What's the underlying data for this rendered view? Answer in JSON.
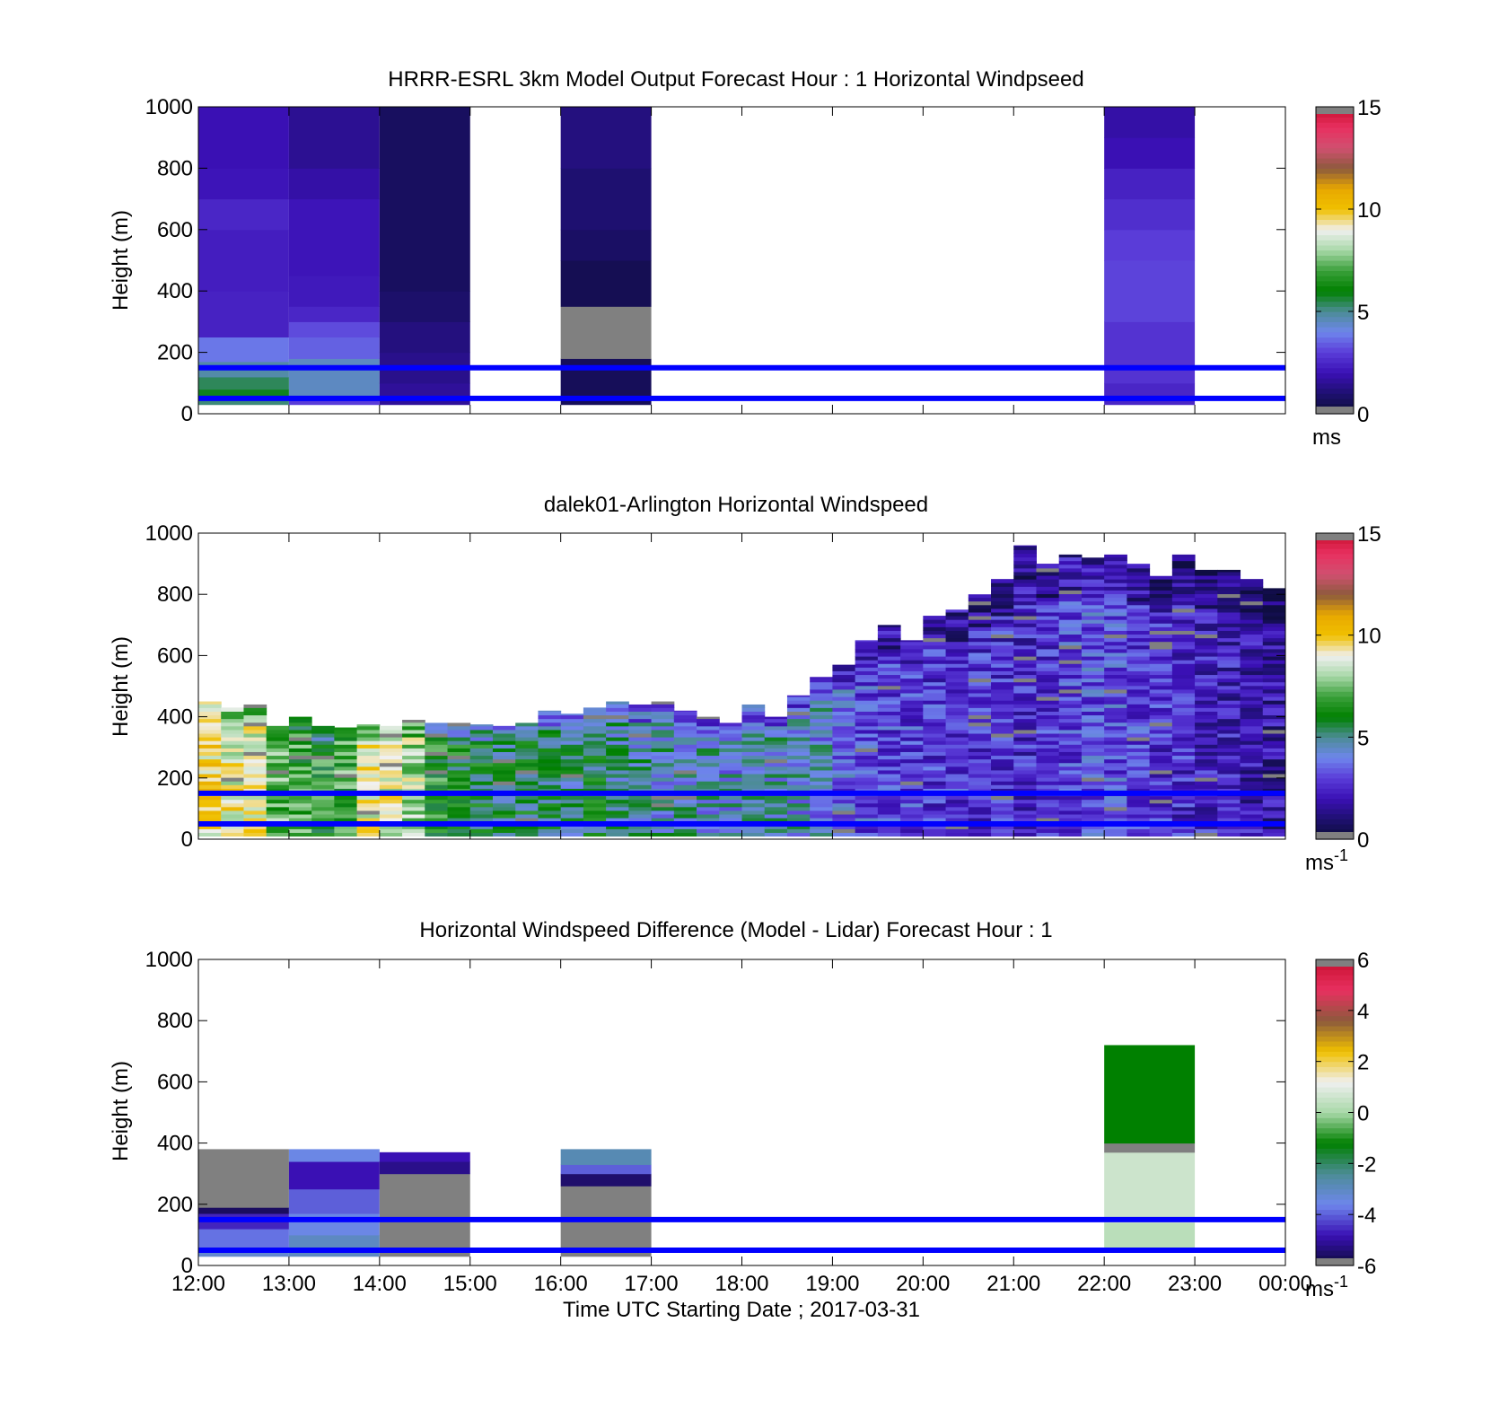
{
  "figure": {
    "x_axis_label": "Time UTC  Starting Date ; 2017-03-31",
    "x_tick_labels": [
      "12:00",
      "13:00",
      "14:00",
      "15:00",
      "16:00",
      "17:00",
      "18:00",
      "19:00",
      "20:00",
      "21:00",
      "22:00",
      "23:00",
      "00:00"
    ]
  },
  "palettes": {
    "speed": [
      "#0b0c36",
      "#1e1070",
      "#3a10b4",
      "#5a3cd8",
      "#6e86ec",
      "#4c8c96",
      "#008000",
      "#3aa03a",
      "#a8d8a8",
      "#f0f0f0",
      "#f0c000",
      "#e8a800",
      "#8c5a3c",
      "#d05070",
      "#e83060",
      "#c8102e"
    ],
    "diff": [
      "#0b0c36",
      "#3a10b4",
      "#6e86ec",
      "#4c8c96",
      "#008000",
      "#a8d8a8",
      "#f0f0f0",
      "#f0c000",
      "#8c5a3c",
      "#e83060",
      "#c8102e"
    ]
  },
  "chart_data": [
    {
      "type": "heatmap",
      "title": "HRRR-ESRL 3km Model Output   Forecast Hour : 1 Horizontal Windpseed",
      "ylabel": "Height (m)",
      "xlim": [
        "12:00",
        "00:00"
      ],
      "ylim": [
        0,
        1000
      ],
      "y_ticks": [
        "0",
        "200",
        "400",
        "600",
        "800",
        "1000"
      ],
      "colorbar": {
        "min": 0,
        "max": 15,
        "ticks": [
          "0",
          "5",
          "10",
          "15"
        ],
        "unit": "ms",
        "palette": "speed"
      },
      "reference_heights_m": [
        50,
        150
      ],
      "columns": [
        {
          "start": "12:00",
          "end": "13:00",
          "layers": [
            [
              30,
              50,
              5.2
            ],
            [
              50,
              80,
              5.8
            ],
            [
              80,
              120,
              5.4
            ],
            [
              120,
              170,
              4.8
            ],
            [
              170,
              250,
              3.8
            ],
            [
              250,
              400,
              2.4
            ],
            [
              400,
              600,
              2.3
            ],
            [
              600,
              700,
              2.5
            ],
            [
              700,
              800,
              2.1
            ],
            [
              800,
              1000,
              2.0
            ]
          ]
        },
        {
          "start": "13:00",
          "end": "14:00",
          "layers": [
            [
              30,
              60,
              3.0
            ],
            [
              60,
              180,
              4.5
            ],
            [
              180,
              250,
              3.5
            ],
            [
              250,
              300,
              3.2
            ],
            [
              300,
              350,
              2.5
            ],
            [
              350,
              450,
              2.2
            ],
            [
              450,
              700,
              2.1
            ],
            [
              700,
              800,
              1.8
            ],
            [
              800,
              1000,
              1.5
            ]
          ]
        },
        {
          "start": "14:00",
          "end": "15:00",
          "layers": [
            [
              30,
              100,
              1.6
            ],
            [
              100,
              200,
              1.4
            ],
            [
              200,
              300,
              1.2
            ],
            [
              300,
              400,
              0.9
            ],
            [
              400,
              1000,
              0.7
            ]
          ]
        },
        {
          "start": "16:00",
          "end": "17:00",
          "layers": [
            [
              30,
              180,
              0.6
            ],
            [
              180,
              350,
              "nan"
            ],
            [
              350,
              500,
              0.5
            ],
            [
              500,
              600,
              0.8
            ],
            [
              600,
              800,
              1.0
            ],
            [
              800,
              1000,
              1.2
            ]
          ]
        },
        {
          "start": "22:00",
          "end": "23:00",
          "layers": [
            [
              30,
              100,
              2.5
            ],
            [
              100,
              300,
              2.8
            ],
            [
              300,
              500,
              3.1
            ],
            [
              500,
              600,
              3.0
            ],
            [
              600,
              700,
              2.7
            ],
            [
              700,
              800,
              2.4
            ],
            [
              800,
              900,
              2.0
            ],
            [
              900,
              1000,
              1.8
            ]
          ]
        }
      ]
    },
    {
      "type": "heatmap",
      "title": "dalek01-Arlington  Horizontal Windspeed",
      "ylabel": "Height (m)",
      "xlim": [
        "12:00",
        "00:00"
      ],
      "ylim": [
        0,
        1000
      ],
      "y_ticks": [
        "0",
        "200",
        "400",
        "600",
        "800",
        "1000"
      ],
      "colorbar": {
        "min": 0,
        "max": 15,
        "ticks": [
          "0",
          "5",
          "10",
          "15"
        ],
        "unit": "ms-1",
        "palette": "speed"
      },
      "reference_heights_m": [
        50,
        150
      ],
      "column_width_hours": 0.25,
      "columns": [
        {
          "t": 12.0,
          "top": 450,
          "mean": 9.5
        },
        {
          "t": 12.25,
          "top": 430,
          "mean": 9.0
        },
        {
          "t": 12.5,
          "top": 440,
          "mean": 8.8
        },
        {
          "t": 12.75,
          "top": 370,
          "mean": 7.2
        },
        {
          "t": 13.0,
          "top": 400,
          "mean": 6.8
        },
        {
          "t": 13.25,
          "top": 370,
          "mean": 6.5
        },
        {
          "t": 13.5,
          "top": 365,
          "mean": 7.0
        },
        {
          "t": 13.75,
          "top": 375,
          "mean": 9.0
        },
        {
          "t": 14.0,
          "top": 370,
          "mean": 8.7
        },
        {
          "t": 14.25,
          "top": 390,
          "mean": 8.2
        },
        {
          "t": 14.5,
          "top": 380,
          "mean": 6.4
        },
        {
          "t": 14.75,
          "top": 380,
          "mean": 6.0
        },
        {
          "t": 15.0,
          "top": 375,
          "mean": 5.8
        },
        {
          "t": 15.25,
          "top": 370,
          "mean": 5.5
        },
        {
          "t": 15.5,
          "top": 380,
          "mean": 5.6
        },
        {
          "t": 15.75,
          "top": 420,
          "mean": 5.4
        },
        {
          "t": 16.0,
          "top": 410,
          "mean": 5.2
        },
        {
          "t": 16.25,
          "top": 430,
          "mean": 5.6
        },
        {
          "t": 16.5,
          "top": 450,
          "mean": 5.0
        },
        {
          "t": 16.75,
          "top": 440,
          "mean": 4.8
        },
        {
          "t": 17.0,
          "top": 450,
          "mean": 4.6
        },
        {
          "t": 17.25,
          "top": 420,
          "mean": 4.6
        },
        {
          "t": 17.5,
          "top": 400,
          "mean": 4.5
        },
        {
          "t": 17.75,
          "top": 380,
          "mean": 4.4
        },
        {
          "t": 18.0,
          "top": 440,
          "mean": 4.6
        },
        {
          "t": 18.25,
          "top": 400,
          "mean": 4.5
        },
        {
          "t": 18.5,
          "top": 470,
          "mean": 4.4
        },
        {
          "t": 18.75,
          "top": 530,
          "mean": 4.3
        },
        {
          "t": 19.0,
          "top": 570,
          "mean": 3.5
        },
        {
          "t": 19.25,
          "top": 650,
          "mean": 3.2
        },
        {
          "t": 19.5,
          "top": 700,
          "mean": 3.0
        },
        {
          "t": 19.75,
          "top": 650,
          "mean": 3.0
        },
        {
          "t": 20.0,
          "top": 730,
          "mean": 2.8
        },
        {
          "t": 20.25,
          "top": 750,
          "mean": 2.9
        },
        {
          "t": 20.5,
          "top": 800,
          "mean": 2.7
        },
        {
          "t": 20.75,
          "top": 850,
          "mean": 2.6
        },
        {
          "t": 21.0,
          "top": 960,
          "mean": 2.5
        },
        {
          "t": 21.25,
          "top": 900,
          "mean": 2.7
        },
        {
          "t": 21.5,
          "top": 930,
          "mean": 3.1
        },
        {
          "t": 21.75,
          "top": 920,
          "mean": 3.3
        },
        {
          "t": 22.0,
          "top": 930,
          "mean": 3.2
        },
        {
          "t": 22.25,
          "top": 900,
          "mean": 3.0
        },
        {
          "t": 22.5,
          "top": 860,
          "mean": 2.7
        },
        {
          "t": 22.75,
          "top": 930,
          "mean": 2.6
        },
        {
          "t": 23.0,
          "top": 880,
          "mean": 2.4
        },
        {
          "t": 23.25,
          "top": 880,
          "mean": 2.2
        },
        {
          "t": 23.5,
          "top": 850,
          "mean": 2.0
        },
        {
          "t": 23.75,
          "top": 820,
          "mean": 1.8
        }
      ]
    },
    {
      "type": "heatmap",
      "title": "Horizontal Windspeed Difference (Model - Lidar) Forecast Hour : 1",
      "ylabel": "Height (m)",
      "xlabel": "Time UTC  Starting Date ; 2017-03-31",
      "xlim": [
        "12:00",
        "00:00"
      ],
      "ylim": [
        0,
        1000
      ],
      "y_ticks": [
        "0",
        "200",
        "400",
        "600",
        "800",
        "1000"
      ],
      "colorbar": {
        "min": -6,
        "max": 6,
        "ticks": [
          "-6",
          "-4",
          "-2",
          "0",
          "2",
          "4",
          "6"
        ],
        "unit": "ms-1",
        "palette": "diff"
      },
      "reference_heights_m": [
        50,
        150
      ],
      "columns": [
        {
          "start": "12:00",
          "end": "13:00",
          "layers": [
            [
              30,
              60,
              -3.2
            ],
            [
              60,
              120,
              -3.8
            ],
            [
              120,
              170,
              -4.6
            ],
            [
              170,
              190,
              -5.6
            ],
            [
              190,
              380,
              "nan"
            ]
          ]
        },
        {
          "start": "13:00",
          "end": "14:00",
          "layers": [
            [
              30,
              100,
              -3.0
            ],
            [
              100,
              170,
              -3.5
            ],
            [
              170,
              250,
              -4.0
            ],
            [
              250,
              340,
              -4.8
            ],
            [
              340,
              380,
              -3.5
            ]
          ]
        },
        {
          "start": "14:00",
          "end": "15:00",
          "layers": [
            [
              30,
              300,
              "nan"
            ],
            [
              300,
              340,
              -5.2
            ],
            [
              340,
              370,
              -4.8
            ]
          ]
        },
        {
          "start": "16:00",
          "end": "17:00",
          "layers": [
            [
              30,
              260,
              "nan"
            ],
            [
              260,
              300,
              -5.5
            ],
            [
              300,
              330,
              -4.0
            ],
            [
              330,
              380,
              -2.8
            ]
          ]
        },
        {
          "start": "22:00",
          "end": "23:00",
          "layers": [
            [
              60,
              140,
              0.3
            ],
            [
              140,
              370,
              0.6
            ],
            [
              370,
              400,
              "nan"
            ],
            [
              400,
              720,
              -1.2
            ]
          ]
        }
      ]
    }
  ]
}
